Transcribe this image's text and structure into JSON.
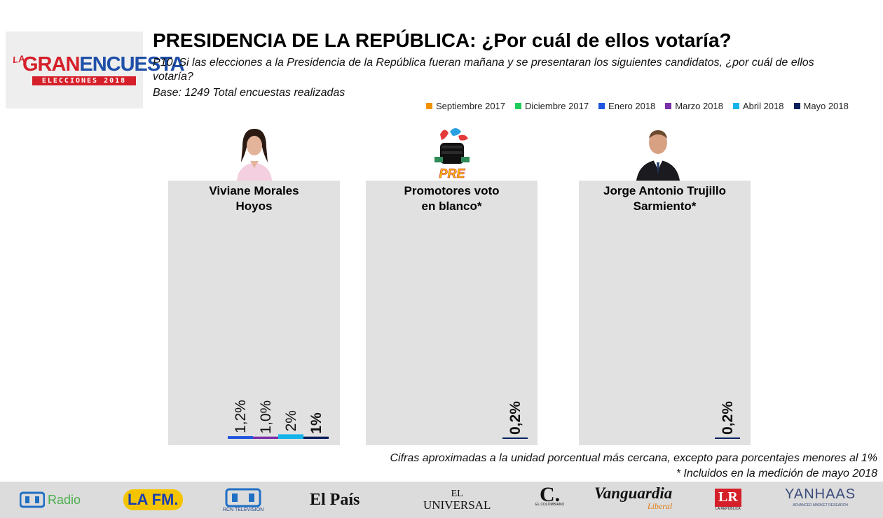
{
  "logo": {
    "la": "LA",
    "gran": "GRAN",
    "encuesta": "ENCUESTA",
    "band": "ELECCIONES 2018"
  },
  "title": "PRESIDENCIA DE LA REPÚBLICA: ¿Por cuál de ellos votaría?",
  "question": "P10. Si las elecciones a la Presidencia de la República fueran mañana y se presentaran los siguientes candidatos, ¿por cuál de ellos votaría?",
  "base": "Base: 1249 Total encuestas realizadas",
  "colors": {
    "panel_bg": "#e1e1e1",
    "accent_red": "#d5202a",
    "accent_blue": "#1f4fa8"
  },
  "chart_data": {
    "type": "bar",
    "legend_placement": "top-right",
    "legend": [
      {
        "name": "Septiembre 2017",
        "color": "#f39200"
      },
      {
        "name": "Diciembre 2017",
        "color": "#1fcc5a"
      },
      {
        "name": "Enero 2018",
        "color": "#1f56e0"
      },
      {
        "name": "Marzo 2018",
        "color": "#7b2fa8"
      },
      {
        "name": "Abril 2018",
        "color": "#14b4ea"
      },
      {
        "name": "Mayo 2018",
        "color": "#0b1f5c"
      }
    ],
    "ylim": [
      0,
      100
    ],
    "categories": [
      {
        "name": "Viviane Morales Hoyos",
        "name_lines": [
          "Viviane Morales",
          "Hoyos"
        ],
        "avatar": "woman-portrait",
        "bars": [
          {
            "series": "Enero 2018",
            "value": 1.2,
            "label": "1,2%"
          },
          {
            "series": "Marzo 2018",
            "value": 1.0,
            "label": "1,0%"
          },
          {
            "series": "Abril 2018",
            "value": 2,
            "label": "2%"
          },
          {
            "series": "Mayo 2018",
            "value": 1,
            "label": "1%"
          }
        ]
      },
      {
        "name": "Promotores voto en blanco*",
        "name_lines": [
          "Promotores voto",
          "en blanco*"
        ],
        "avatar": "pre-fist-logo",
        "bars": [
          {
            "series": "Mayo 2018",
            "value": 0.2,
            "label": "0,2%"
          }
        ]
      },
      {
        "name": "Jorge Antonio Trujillo Sarmiento*",
        "name_lines": [
          "Jorge Antonio Trujillo",
          "Sarmiento*"
        ],
        "avatar": "man-portrait",
        "bars": [
          {
            "series": "Mayo 2018",
            "value": 0.2,
            "label": "0,2%"
          }
        ]
      }
    ]
  },
  "notes": {
    "rounding": "Cifras aproximadas a la unidad porcentual más cercana, excepto para porcentajes menores al 1%",
    "included": "* Incluidos en la medición de mayo 2018"
  },
  "sponsors": {
    "rcn_radio": "Radio",
    "lafm": "LA FM.",
    "rcn_tv": "RCN TELEVISION",
    "el_pais": "El País",
    "el_universal_top": "EL",
    "el_universal_bottom": "UNIVERSAL",
    "el_colombiano": "C.",
    "el_colombiano_sub": "EL COLOMBIANO",
    "vanguardia": "Vanguardia",
    "vanguardia_sub": "Liberal",
    "la_republica": "LR",
    "la_republica_sub": "LA REPÚBLICA",
    "yanhaas": "YANHAAS",
    "yanhaas_sub": "ADVANCED MARKET RESEARCH"
  }
}
